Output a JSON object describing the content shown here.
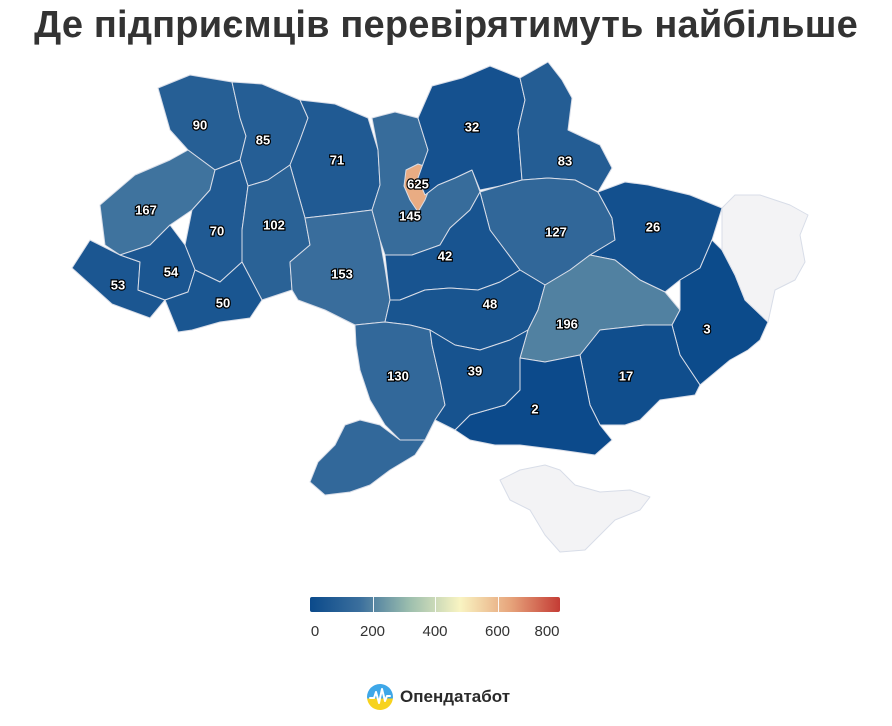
{
  "title": "Де підприємців перевірятимуть найбільше",
  "colorscale": {
    "min": 0,
    "max": 800,
    "stops": [
      "#0b4a8b",
      "#3b6f9d",
      "#9dbfae",
      "#f9f4c2",
      "#e7a57c",
      "#c43c35"
    ],
    "ticks": [
      "0",
      "200",
      "400",
      "600",
      "800"
    ],
    "no_data_color": "#f3f3f5"
  },
  "regions": [
    {
      "id": "lviv",
      "value": 90
    },
    {
      "id": "volyn",
      "value": 85
    },
    {
      "id": "rivne",
      "value": 71
    },
    {
      "id": "zakarpattia",
      "value": 167
    },
    {
      "id": "ternopil",
      "value": 70
    },
    {
      "id": "khmelnytskyi",
      "value": 102
    },
    {
      "id": "ivano-frankivsk",
      "value": 53
    },
    {
      "id": "ivano-frankivsk-2",
      "value": 54
    },
    {
      "id": "chernivtsi",
      "value": 50
    },
    {
      "id": "zhytomyr",
      "value": 153
    },
    {
      "id": "kyiv-oblast",
      "value": 145
    },
    {
      "id": "kyiv-city",
      "value": 625
    },
    {
      "id": "chernihiv",
      "value": 32
    },
    {
      "id": "sumy",
      "value": 83
    },
    {
      "id": "poltava",
      "value": 127
    },
    {
      "id": "kharkiv",
      "value": 26
    },
    {
      "id": "cherkasy",
      "value": 42
    },
    {
      "id": "kirovohrad",
      "value": 48
    },
    {
      "id": "vinnytsia",
      "value": 130
    },
    {
      "id": "dnipro",
      "value": 196
    },
    {
      "id": "luhansk",
      "value": 3
    },
    {
      "id": "donetsk",
      "value": 17
    },
    {
      "id": "zaporizhzhia",
      "value": 2
    },
    {
      "id": "mykolaiv",
      "value": 39
    },
    {
      "id": "luhansk-occupied",
      "value": null
    },
    {
      "id": "crimea",
      "value": null
    }
  ],
  "brand": {
    "name": "Опендатабот",
    "logo_icon": "opendatabot-logo-icon"
  }
}
